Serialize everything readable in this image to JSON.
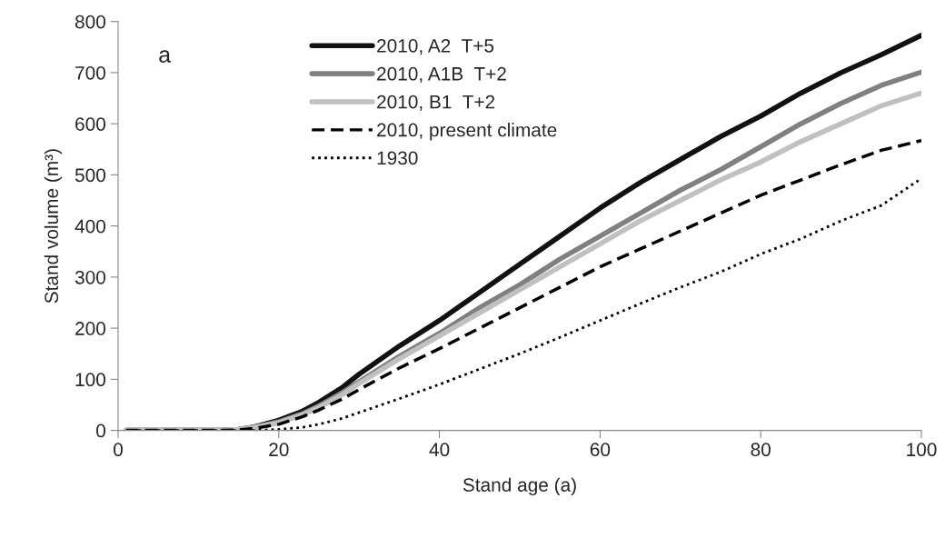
{
  "chart_data": {
    "type": "line",
    "xlabel": "Stand age (a)",
    "ylabel": "Stand volume (m³)",
    "x": [
      1,
      13,
      15,
      17,
      20,
      23,
      25,
      28,
      30,
      35,
      40,
      45,
      50,
      55,
      60,
      65,
      70,
      75,
      80,
      85,
      90,
      95,
      100
    ],
    "series": [
      {
        "name": "2010, A2  T+5",
        "color": "#111111",
        "line_style": "solid",
        "values": [
          0,
          0,
          2,
          7,
          20,
          38,
          55,
          85,
          110,
          165,
          215,
          270,
          325,
          380,
          435,
          485,
          530,
          575,
          615,
          660,
          700,
          735,
          773
        ]
      },
      {
        "name": "2010, A1B  T+2",
        "color": "#808080",
        "line_style": "solid",
        "values": [
          0,
          0,
          2,
          6,
          17,
          33,
          48,
          75,
          95,
          145,
          190,
          240,
          285,
          335,
          380,
          425,
          470,
          510,
          555,
          600,
          640,
          675,
          701
        ]
      },
      {
        "name": "2010, B1  T+2",
        "color": "#c0c0c0",
        "line_style": "solid",
        "values": [
          0,
          0,
          2,
          6,
          15,
          31,
          45,
          71,
          92,
          140,
          185,
          230,
          275,
          320,
          365,
          410,
          450,
          490,
          525,
          565,
          600,
          635,
          660
        ]
      },
      {
        "name": "2010, present climate",
        "color": "#000000",
        "line_style": "dashed",
        "values": [
          0,
          0,
          1,
          4,
          12,
          27,
          40,
          62,
          80,
          122,
          160,
          200,
          240,
          280,
          320,
          355,
          390,
          425,
          460,
          490,
          520,
          548,
          567
        ]
      },
      {
        "name": "1930",
        "color": "#000000",
        "line_style": "dotted",
        "values": [
          0,
          0,
          0,
          0,
          2,
          6,
          12,
          24,
          35,
          62,
          90,
          120,
          150,
          182,
          215,
          248,
          280,
          310,
          345,
          375,
          410,
          440,
          493
        ]
      }
    ],
    "xlim": [
      0,
      100
    ],
    "xticks": [
      0,
      20,
      40,
      60,
      80,
      100
    ],
    "ylim": [
      0,
      800
    ],
    "yticks": [
      0,
      100,
      200,
      300,
      400,
      500,
      600,
      700,
      800
    ],
    "grid": false,
    "legend": "top",
    "annotations": [
      "a"
    ]
  }
}
